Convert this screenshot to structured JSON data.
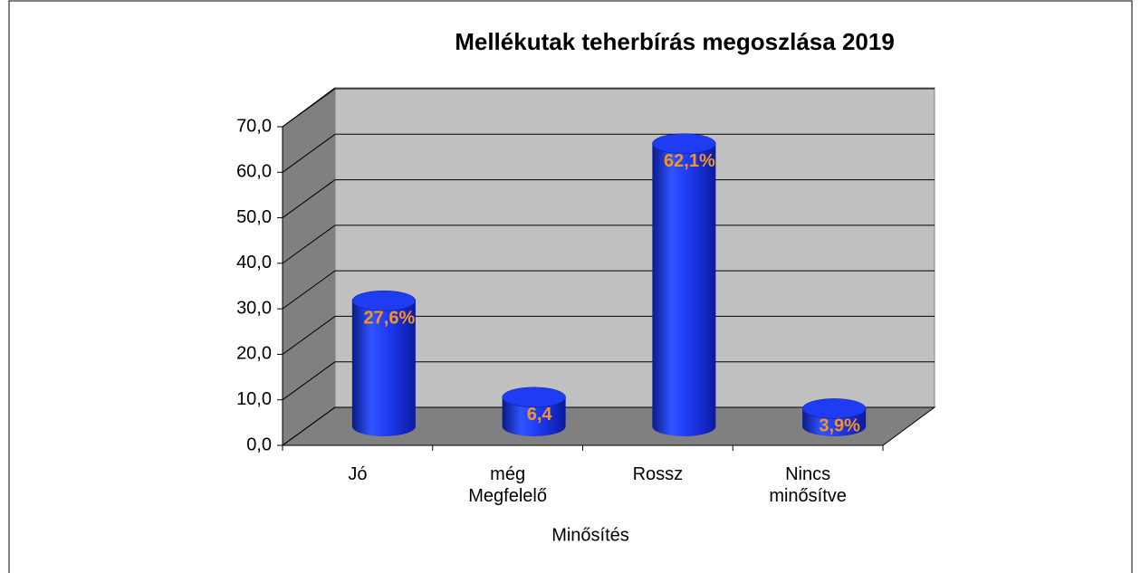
{
  "chart_data": {
    "type": "bar3d",
    "title": "Mellékutak teherbírás megoszlása 2019",
    "x_label": "Minősítés",
    "categories": [
      "Jó",
      "még Megfelelő",
      "Rossz",
      "Nincs minősítve"
    ],
    "values": [
      27.6,
      6.4,
      62.1,
      3.9
    ],
    "value_labels": [
      "27,6%",
      "6,4",
      "62,1%",
      "3,9%"
    ],
    "color": "#1f3cf5",
    "ylim": [
      0,
      70
    ],
    "yticks": [
      {
        "value": 0,
        "label": "0,0"
      },
      {
        "value": 10,
        "label": "10,0"
      },
      {
        "value": 20,
        "label": "20,0"
      },
      {
        "value": 30,
        "label": "30,0"
      },
      {
        "value": 40,
        "label": "40,0"
      },
      {
        "value": 50,
        "label": "50,0"
      },
      {
        "value": 60,
        "label": "60,0"
      },
      {
        "value": 70,
        "label": "70,0"
      }
    ],
    "grid": true
  }
}
